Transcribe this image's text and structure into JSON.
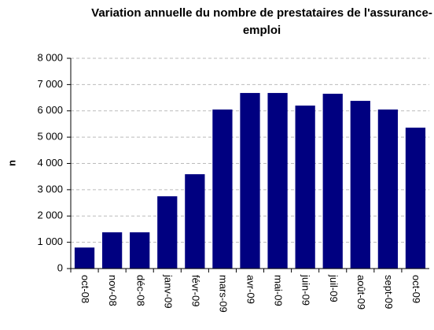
{
  "chart_data": {
    "type": "bar",
    "title": "Variation annuelle du nombre de prestataires de l'assurance-emploi",
    "y_label": "n",
    "categories": [
      "oct-08",
      "nov-08",
      "déc-08",
      "janv-09",
      "févr-09",
      "mars-09",
      "avr-09",
      "mai-09",
      "juin-09",
      "juil-09",
      "août-09",
      "sept-09",
      "oct-09"
    ],
    "values": [
      800,
      1380,
      1380,
      2750,
      3590,
      6050,
      6680,
      6680,
      6200,
      6650,
      6380,
      6050,
      5360
    ],
    "color": "#000080",
    "ylim": [
      0,
      8000
    ],
    "yticks": [
      0,
      {
        "value": 1000,
        "label": "1 000"
      },
      {
        "value": 2000,
        "label": "2 000"
      },
      {
        "value": 3000,
        "label": "3 000"
      },
      {
        "value": 4000,
        "label": "4 000"
      },
      {
        "value": 5000,
        "label": "5 000"
      },
      {
        "value": 6000,
        "label": "6 000"
      },
      {
        "value": 7000,
        "label": "7 000"
      },
      {
        "value": 8000,
        "label": "8 000"
      }
    ],
    "grid": true
  }
}
